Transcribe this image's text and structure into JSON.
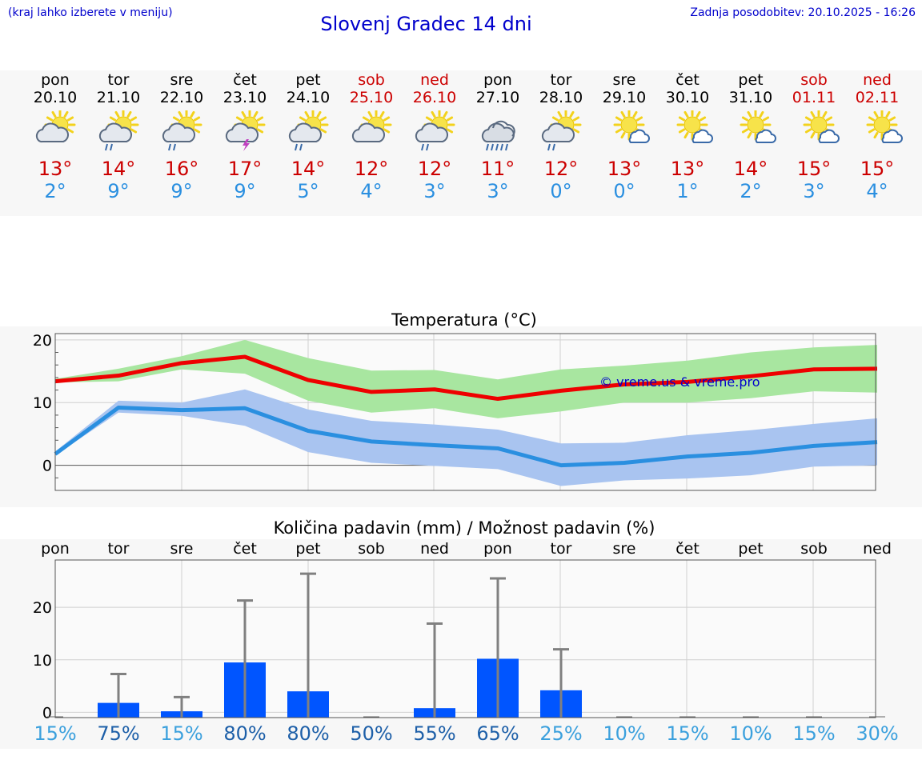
{
  "header": {
    "hint": "(kraj lahko izberete v meniju)",
    "title": "Slovenj Gradec 14 dni",
    "updated": "Zadnja posodobitev: 20.10.2025 - 16:26"
  },
  "days": [
    {
      "dn": "pon",
      "date": "20.10",
      "weekend": false,
      "icon": "sun-cloud-icon",
      "max": "13°",
      "min": "2°"
    },
    {
      "dn": "tor",
      "date": "21.10",
      "weekend": false,
      "icon": "sun-cloud-rain-icon",
      "max": "14°",
      "min": "9°"
    },
    {
      "dn": "sre",
      "date": "22.10",
      "weekend": false,
      "icon": "sun-cloud-rain-icon",
      "max": "16°",
      "min": "9°"
    },
    {
      "dn": "čet",
      "date": "23.10",
      "weekend": false,
      "icon": "sun-cloud-thunder-icon",
      "max": "17°",
      "min": "9°"
    },
    {
      "dn": "pet",
      "date": "24.10",
      "weekend": false,
      "icon": "sun-cloud-rain-icon",
      "max": "14°",
      "min": "5°"
    },
    {
      "dn": "sob",
      "date": "25.10",
      "weekend": true,
      "icon": "sun-cloud-icon",
      "max": "12°",
      "min": "4°"
    },
    {
      "dn": "ned",
      "date": "26.10",
      "weekend": true,
      "icon": "sun-cloud-rain-icon",
      "max": "12°",
      "min": "3°"
    },
    {
      "dn": "pon",
      "date": "27.10",
      "weekend": false,
      "icon": "cloud-heavy-rain-icon",
      "max": "11°",
      "min": "3°"
    },
    {
      "dn": "tor",
      "date": "28.10",
      "weekend": false,
      "icon": "sun-cloud-rain-icon",
      "max": "12°",
      "min": "0°"
    },
    {
      "dn": "sre",
      "date": "29.10",
      "weekend": false,
      "icon": "sun-small-cloud-icon",
      "max": "13°",
      "min": "0°"
    },
    {
      "dn": "čet",
      "date": "30.10",
      "weekend": false,
      "icon": "sun-small-cloud-icon",
      "max": "13°",
      "min": "1°"
    },
    {
      "dn": "pet",
      "date": "31.10",
      "weekend": false,
      "icon": "sun-small-cloud-icon",
      "max": "14°",
      "min": "2°"
    },
    {
      "dn": "sob",
      "date": "01.11",
      "weekend": true,
      "icon": "sun-small-cloud-icon",
      "max": "15°",
      "min": "3°"
    },
    {
      "dn": "ned",
      "date": "02.11",
      "weekend": true,
      "icon": "sun-small-cloud-icon",
      "max": "15°",
      "min": "4°"
    }
  ],
  "colors": {
    "max": "#ee0000",
    "min": "#2a8fe0",
    "max_band": "#a8e6a0",
    "min_band": "#a9c4f0",
    "bar": "#0055ff",
    "err": "#808080"
  },
  "chart_data": [
    {
      "type": "line",
      "title": "Temperatura (°C)",
      "watermark": "© vreme.us & vreme.pro",
      "ylim": [
        -4,
        21
      ],
      "yticks": [
        0,
        10,
        20
      ],
      "series": [
        {
          "name": "max",
          "values": [
            13.4,
            14.3,
            16.3,
            17.3,
            13.6,
            11.7,
            12.1,
            10.6,
            11.9,
            12.9,
            13.3,
            14.2,
            15.3,
            15.4
          ]
        },
        {
          "name": "min",
          "values": [
            1.8,
            9.2,
            8.8,
            9.1,
            5.5,
            3.8,
            3.2,
            2.7,
            0.0,
            0.4,
            1.4,
            2.0,
            3.1,
            3.7
          ]
        },
        {
          "name": "max_upper",
          "values": [
            13.8,
            15.4,
            17.4,
            20.0,
            17.1,
            15.1,
            15.2,
            13.7,
            15.3,
            15.9,
            16.7,
            18.0,
            18.8,
            19.2
          ]
        },
        {
          "name": "max_lower",
          "values": [
            13.2,
            13.4,
            15.3,
            14.6,
            10.3,
            8.4,
            9.1,
            7.5,
            8.6,
            10.0,
            10.0,
            10.7,
            11.8,
            11.6
          ]
        },
        {
          "name": "min_upper",
          "values": [
            2.2,
            10.3,
            10.0,
            12.1,
            8.9,
            7.1,
            6.5,
            5.7,
            3.5,
            3.6,
            4.8,
            5.6,
            6.6,
            7.5
          ]
        },
        {
          "name": "min_lower",
          "values": [
            1.6,
            8.4,
            7.9,
            6.3,
            2.1,
            0.4,
            -0.1,
            -0.6,
            -3.3,
            -2.4,
            -2.1,
            -1.6,
            -0.2,
            0.0
          ]
        }
      ]
    },
    {
      "type": "bar",
      "title": "Količina padavin (mm) / Možnost padavin (%)",
      "categories": [
        "pon",
        "tor",
        "sre",
        "čet",
        "pet",
        "sob",
        "ned",
        "pon",
        "tor",
        "sre",
        "čet",
        "pet",
        "sob",
        "ned"
      ],
      "ylim": [
        -1,
        29
      ],
      "yticks": [
        0,
        10,
        20
      ],
      "values": [
        0,
        1.8,
        0.2,
        9.5,
        4.0,
        0,
        0.8,
        10.2,
        4.2,
        0,
        0,
        0,
        0,
        0
      ],
      "error_upper": [
        0,
        7.3,
        2.9,
        21.3,
        26.4,
        0,
        16.9,
        25.5,
        12.0,
        0,
        0,
        0,
        0,
        0
      ],
      "probability": [
        "15%",
        "75%",
        "15%",
        "80%",
        "80%",
        "50%",
        "55%",
        "65%",
        "25%",
        "10%",
        "15%",
        "10%",
        "15%",
        "30%"
      ],
      "probability_values": [
        15,
        75,
        15,
        80,
        80,
        50,
        55,
        65,
        25,
        10,
        15,
        10,
        15,
        30
      ]
    }
  ]
}
